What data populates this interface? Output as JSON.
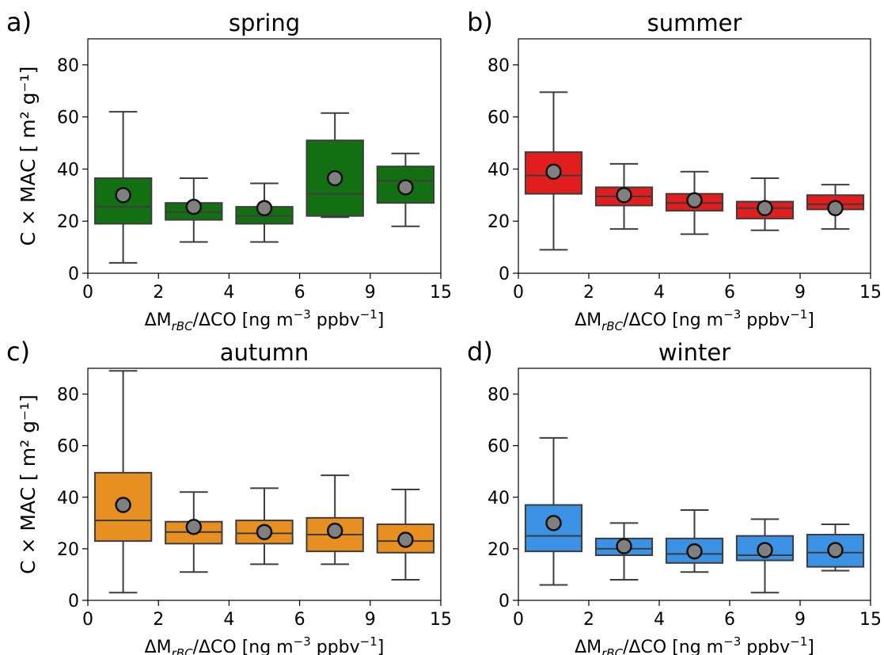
{
  "chart_data": [
    {
      "type": "box",
      "letter": "a)",
      "title": "spring",
      "color": "#127012",
      "categories": [
        "0-2",
        "2-4",
        "4-6",
        "6-9",
        "9-15"
      ],
      "ylim": [
        0,
        90
      ],
      "yticks": [
        0,
        20,
        40,
        60,
        80
      ],
      "xticks": [
        "0",
        "2",
        "4",
        "6",
        "9",
        "15"
      ],
      "boxes": [
        {
          "whisker_low": 4,
          "q1": 19,
          "median": 25.5,
          "q3": 36.5,
          "whisker_high": 62,
          "mean": 30
        },
        {
          "whisker_low": 12,
          "q1": 20.5,
          "median": 23.5,
          "q3": 27,
          "whisker_high": 36.5,
          "mean": 25.5
        },
        {
          "whisker_low": 12,
          "q1": 19,
          "median": 22,
          "q3": 25.5,
          "whisker_high": 34.5,
          "mean": 25
        },
        {
          "whisker_low": 21.5,
          "q1": 22,
          "median": 30.5,
          "q3": 51,
          "whisker_high": 61.5,
          "mean": 36.5
        },
        {
          "whisker_low": 18,
          "q1": 27,
          "median": 35.5,
          "q3": 41,
          "whisker_high": 46,
          "mean": 33
        }
      ]
    },
    {
      "type": "box",
      "letter": "b)",
      "title": "summer",
      "color": "#e21d1d",
      "categories": [
        "0-2",
        "2-4",
        "4-6",
        "6-9",
        "9-15"
      ],
      "ylim": [
        0,
        90
      ],
      "yticks": [
        0,
        20,
        40,
        60,
        80
      ],
      "xticks": [
        "0",
        "2",
        "4",
        "6",
        "9",
        "15"
      ],
      "boxes": [
        {
          "whisker_low": 9,
          "q1": 30.5,
          "median": 37.5,
          "q3": 46.5,
          "whisker_high": 69.5,
          "mean": 39
        },
        {
          "whisker_low": 17,
          "q1": 26,
          "median": 29.5,
          "q3": 33,
          "whisker_high": 42,
          "mean": 30
        },
        {
          "whisker_low": 15,
          "q1": 24,
          "median": 27,
          "q3": 30.5,
          "whisker_high": 39,
          "mean": 28
        },
        {
          "whisker_low": 16.5,
          "q1": 21,
          "median": 25,
          "q3": 27.5,
          "whisker_high": 36.5,
          "mean": 25
        },
        {
          "whisker_low": 17,
          "q1": 24.5,
          "median": 26.5,
          "q3": 30,
          "whisker_high": 34,
          "mean": 25
        }
      ]
    },
    {
      "type": "box",
      "letter": "c)",
      "title": "autumn",
      "color": "#e88f22",
      "categories": [
        "0-2",
        "2-4",
        "4-6",
        "6-9",
        "9-15"
      ],
      "ylim": [
        0,
        90
      ],
      "yticks": [
        0,
        20,
        40,
        60,
        80
      ],
      "xticks": [
        "0",
        "2",
        "4",
        "6",
        "9",
        "15"
      ],
      "boxes": [
        {
          "whisker_low": 3,
          "q1": 23,
          "median": 31,
          "q3": 49.5,
          "whisker_high": 89,
          "mean": 37
        },
        {
          "whisker_low": 11,
          "q1": 22,
          "median": 26.5,
          "q3": 30.5,
          "whisker_high": 42,
          "mean": 28.5
        },
        {
          "whisker_low": 14,
          "q1": 22,
          "median": 26,
          "q3": 31,
          "whisker_high": 43.5,
          "mean": 26.5
        },
        {
          "whisker_low": 14,
          "q1": 19,
          "median": 25.5,
          "q3": 32,
          "whisker_high": 48.5,
          "mean": 27
        },
        {
          "whisker_low": 8,
          "q1": 18.5,
          "median": 23,
          "q3": 29.5,
          "whisker_high": 43,
          "mean": 23.5
        }
      ]
    },
    {
      "type": "box",
      "letter": "d)",
      "title": "winter",
      "color": "#3b92e4",
      "categories": [
        "0-2",
        "2-4",
        "4-6",
        "6-9",
        "9-15"
      ],
      "ylim": [
        0,
        90
      ],
      "yticks": [
        0,
        20,
        40,
        60,
        80
      ],
      "xticks": [
        "0",
        "2",
        "4",
        "6",
        "9",
        "15"
      ],
      "boxes": [
        {
          "whisker_low": 6,
          "q1": 19,
          "median": 25,
          "q3": 37,
          "whisker_high": 63,
          "mean": 30
        },
        {
          "whisker_low": 8,
          "q1": 17.5,
          "median": 20,
          "q3": 24,
          "whisker_high": 30,
          "mean": 21
        },
        {
          "whisker_low": 11,
          "q1": 14.5,
          "median": 18,
          "q3": 24,
          "whisker_high": 35,
          "mean": 19
        },
        {
          "whisker_low": 3,
          "q1": 15.5,
          "median": 17.5,
          "q3": 25,
          "whisker_high": 31.5,
          "mean": 19.5
        },
        {
          "whisker_low": 11.5,
          "q1": 13,
          "median": 18.5,
          "q3": 25.5,
          "whisker_high": 29.5,
          "mean": 19.5
        }
      ]
    }
  ],
  "ylabel": "C × MAC [ m² g⁻¹]",
  "xlabel": {
    "prefix": "ΔM",
    "subscript": "rBC",
    "middle": "/ΔCO [ng m",
    "sup1": "−3",
    "middle2": " ppbv",
    "sup2": "−1",
    "suffix": "]"
  }
}
